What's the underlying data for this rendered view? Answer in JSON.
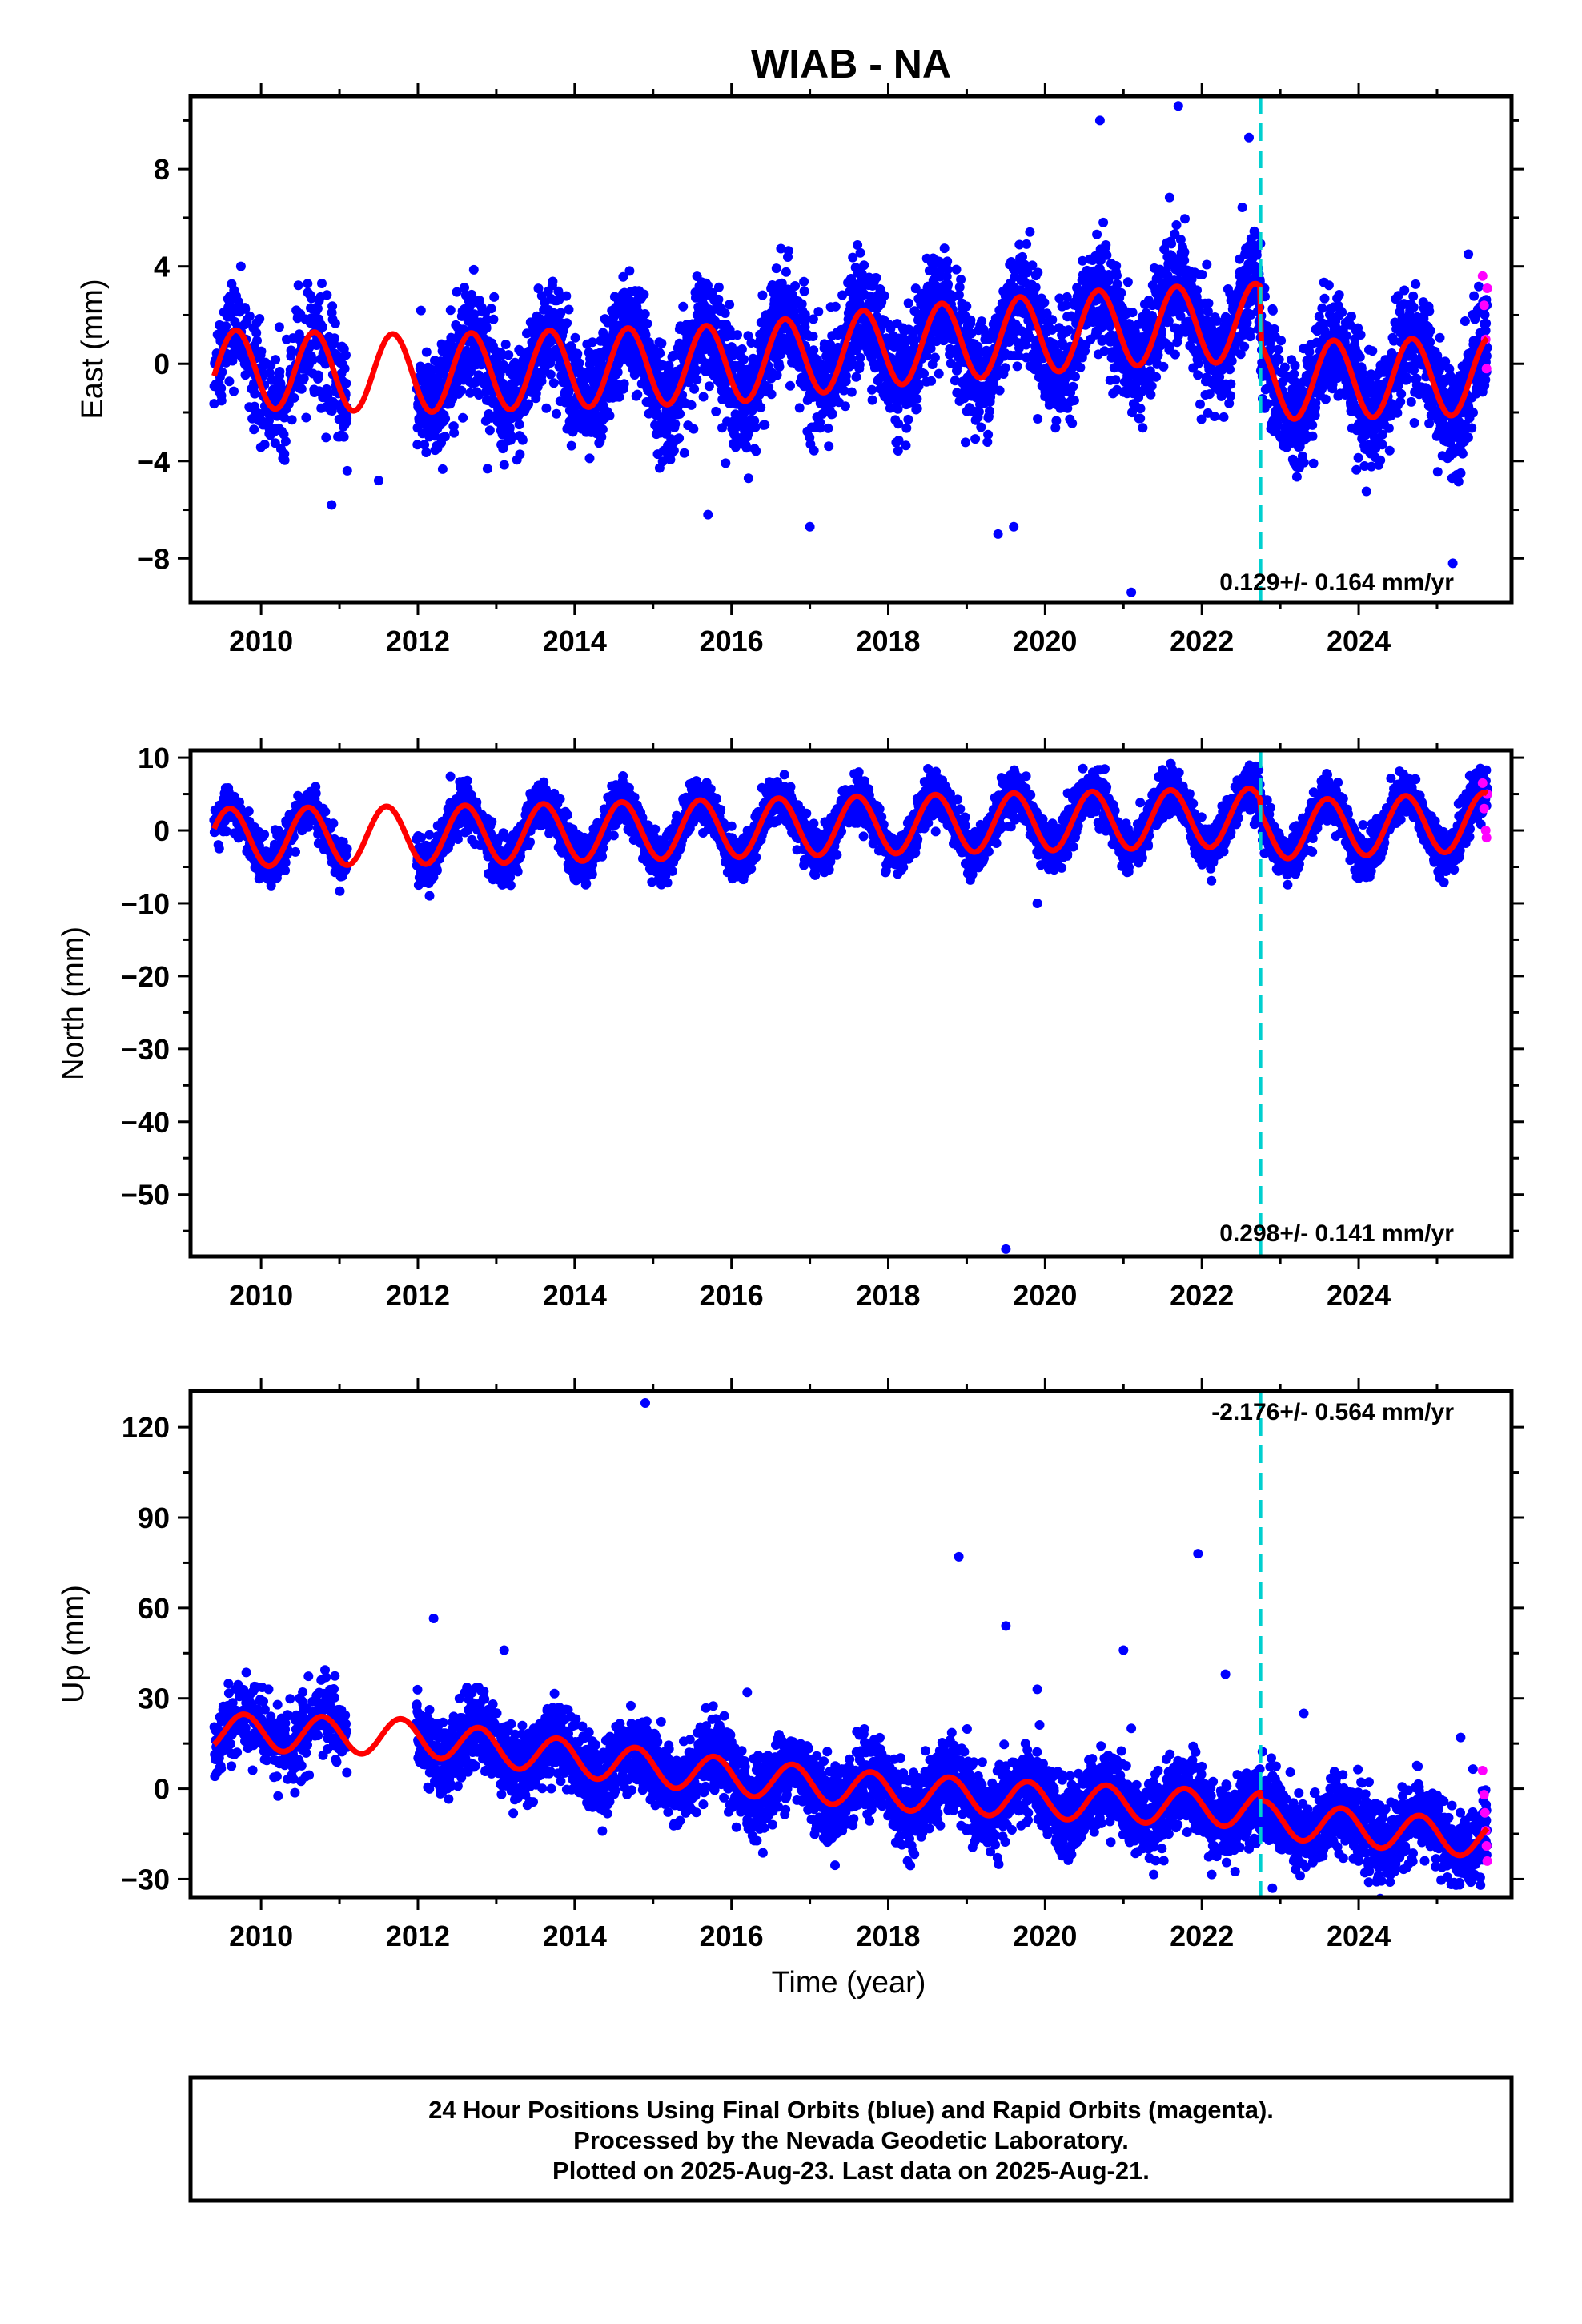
{
  "title": "WIAB - NA",
  "xlabel": "Time (year)",
  "footer": {
    "line1": "24 Hour Positions Using Final Orbits (blue) and Rapid Orbits (magenta).",
    "line2": "Processed by the Nevada Geodetic Laboratory.",
    "line3": "Plotted on 2025-Aug-23. Last data on 2025-Aug-21."
  },
  "colors": {
    "final_orbits": "#0000ff",
    "rapid_orbits": "#ff00ff",
    "model_fit": "#ff0000",
    "event_line": "#00d0d0"
  },
  "chart_data": [
    {
      "type": "scatter",
      "name": "east",
      "ylabel": "East (mm)",
      "xlim": [
        2009.1,
        2025.95
      ],
      "ylim": [
        -9.8,
        11
      ],
      "xticks": [
        2010,
        2012,
        2014,
        2016,
        2018,
        2020,
        2022,
        2024
      ],
      "yticks": [
        -8,
        -4,
        0,
        4,
        8
      ],
      "rate_label": "0.129+/- 0.164 mm/yr",
      "rate_position": "bottom-right",
      "event_line_x": 2022.75,
      "data_start": 2009.4,
      "data_end": 2025.64,
      "gaps": [
        [
          2011.1,
          2011.98
        ]
      ],
      "model": {
        "offset": 0.0,
        "amplitude": 1.6,
        "peak_phase": 0.68,
        "trend_points": [
          [
            2009.4,
            -0.2
          ],
          [
            2012.0,
            -0.4
          ],
          [
            2016.0,
            0.0
          ],
          [
            2018.0,
            0.7
          ],
          [
            2021.0,
            1.5
          ],
          [
            2022.74,
            1.7
          ],
          [
            2022.76,
            -0.7
          ],
          [
            2025.64,
            -0.5
          ]
        ]
      },
      "noise_std": 1.1,
      "outliers": [
        [
          2010.9,
          -5.8
        ],
        [
          2011.1,
          -4.4
        ],
        [
          2011.5,
          -4.8
        ],
        [
          2015.7,
          -6.2
        ],
        [
          2017.0,
          -6.7
        ],
        [
          2019.4,
          -7.0
        ],
        [
          2019.6,
          -6.7
        ],
        [
          2020.7,
          10.0
        ],
        [
          2021.1,
          -9.4
        ],
        [
          2021.7,
          10.6
        ],
        [
          2022.6,
          9.3
        ],
        [
          2025.2,
          -8.2
        ],
        [
          2025.4,
          4.5
        ]
      ],
      "rapid_points": [
        [
          2025.58,
          3.6
        ],
        [
          2025.6,
          2.4
        ],
        [
          2025.62,
          1.0
        ],
        [
          2025.63,
          -0.2
        ],
        [
          2025.64,
          3.1
        ]
      ]
    },
    {
      "type": "scatter",
      "name": "north",
      "ylabel": "North (mm)",
      "xlim": [
        2009.1,
        2025.95
      ],
      "ylim": [
        -58.5,
        11
      ],
      "xticks": [
        2010,
        2012,
        2014,
        2016,
        2018,
        2020,
        2022,
        2024
      ],
      "yticks": [
        -50,
        -40,
        -30,
        -20,
        -10,
        0,
        10
      ],
      "rate_label": "0.298+/- 0.141 mm/yr",
      "rate_position": "bottom-right",
      "event_line_x": 2022.75,
      "data_start": 2009.4,
      "data_end": 2025.64,
      "gaps": [
        [
          2011.1,
          2011.98
        ]
      ],
      "model": {
        "offset": 0.0,
        "amplitude": 4.0,
        "peak_phase": 0.6,
        "trend_points": [
          [
            2009.4,
            -1.0
          ],
          [
            2013.0,
            -0.5
          ],
          [
            2018.0,
            0.8
          ],
          [
            2022.74,
            1.8
          ],
          [
            2022.76,
            0.0
          ],
          [
            2025.64,
            1.2
          ]
        ]
      },
      "noise_std": 1.5,
      "outliers": [
        [
          2019.5,
          -57.5
        ],
        [
          2019.9,
          -10.0
        ]
      ],
      "rapid_points": [
        [
          2025.58,
          6.5
        ],
        [
          2025.6,
          3.0
        ],
        [
          2025.62,
          0.0
        ],
        [
          2025.63,
          -1.0
        ],
        [
          2025.64,
          5.0
        ]
      ]
    },
    {
      "type": "scatter",
      "name": "up",
      "ylabel": "Up (mm)",
      "xlim": [
        2009.1,
        2025.95
      ],
      "ylim": [
        -36,
        132
      ],
      "xticks": [
        2010,
        2012,
        2014,
        2016,
        2018,
        2020,
        2022,
        2024
      ],
      "yticks": [
        -30,
        0,
        30,
        60,
        90,
        120
      ],
      "rate_label": "-2.176+/- 0.564 mm/yr",
      "rate_position": "top-right",
      "event_line_x": 2022.75,
      "data_start": 2009.4,
      "data_end": 2025.64,
      "gaps": [
        [
          2011.1,
          2011.98
        ]
      ],
      "model": {
        "offset": 0.0,
        "amplitude": 6.0,
        "peak_phase": 0.78,
        "trend_points": [
          [
            2009.4,
            19
          ],
          [
            2012.0,
            17
          ],
          [
            2014.0,
            10
          ],
          [
            2016.0,
            4
          ],
          [
            2018.0,
            -1
          ],
          [
            2020.0,
            -4
          ],
          [
            2022.74,
            -7
          ],
          [
            2022.76,
            -10
          ],
          [
            2025.64,
            -17
          ]
        ]
      },
      "noise_std": 6.0,
      "outliers": [
        [
          2012.2,
          56.5
        ],
        [
          2013.1,
          46
        ],
        [
          2014.9,
          128
        ],
        [
          2016.2,
          32
        ],
        [
          2018.9,
          77
        ],
        [
          2019.5,
          54
        ],
        [
          2019.9,
          33
        ],
        [
          2021.0,
          46
        ],
        [
          2021.1,
          20
        ],
        [
          2021.95,
          78
        ],
        [
          2022.3,
          38
        ],
        [
          2022.6,
          -20
        ],
        [
          2022.9,
          -33
        ],
        [
          2023.3,
          25
        ],
        [
          2025.3,
          17
        ]
      ],
      "rapid_points": [
        [
          2025.58,
          6
        ],
        [
          2025.6,
          -2
        ],
        [
          2025.61,
          -8
        ],
        [
          2025.62,
          -14
        ],
        [
          2025.63,
          -19
        ],
        [
          2025.64,
          -24
        ]
      ]
    }
  ]
}
